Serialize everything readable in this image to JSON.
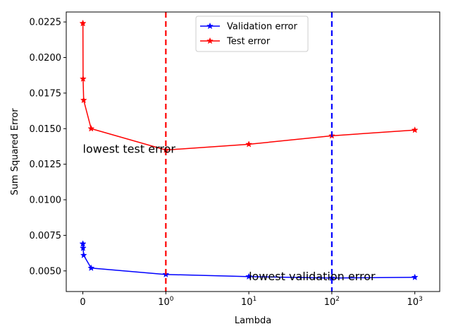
{
  "chart_data": {
    "type": "line",
    "xlabel": "Lambda",
    "ylabel": "Sum Squared Error",
    "x_scale": "symlog",
    "xlim": [
      -0.2,
      1995
    ],
    "ylim": [
      0.00355,
      0.0232
    ],
    "x_ticks": [
      {
        "value": 0,
        "base": "0",
        "exp": ""
      },
      {
        "value": 1,
        "base": "10",
        "exp": "0"
      },
      {
        "value": 10,
        "base": "10",
        "exp": "1"
      },
      {
        "value": 100,
        "base": "10",
        "exp": "2"
      },
      {
        "value": 1000,
        "base": "10",
        "exp": "3"
      }
    ],
    "y_ticks": [
      {
        "value": 0.005,
        "label": "0.0050"
      },
      {
        "value": 0.0075,
        "label": "0.0075"
      },
      {
        "value": 0.01,
        "label": "0.0100"
      },
      {
        "value": 0.0125,
        "label": "0.0125"
      },
      {
        "value": 0.015,
        "label": "0.0150"
      },
      {
        "value": 0.0175,
        "label": "0.0175"
      },
      {
        "value": 0.02,
        "label": "0.0200"
      },
      {
        "value": 0.0225,
        "label": "0.0225"
      }
    ],
    "grid": false,
    "legend": "upper-center",
    "series": [
      {
        "name": "Validation error",
        "color": "#0000ff",
        "x": [
          0,
          0.001,
          0.003,
          0.01,
          0.1,
          1,
          10,
          100,
          1000
        ],
        "y": [
          0.0069,
          0.0069,
          0.0066,
          0.0061,
          0.0052,
          0.00475,
          0.0046,
          0.0045,
          0.00455
        ]
      },
      {
        "name": "Test error",
        "color": "#ff0000",
        "x": [
          0,
          0.001,
          0.003,
          0.01,
          0.1,
          1,
          10,
          100,
          1000
        ],
        "y": [
          0.0224,
          0.0224,
          0.0185,
          0.017,
          0.015,
          0.0135,
          0.0139,
          0.0145,
          0.0149
        ]
      }
    ],
    "vlines": [
      {
        "x": 1,
        "color": "#ff0000",
        "style": "dashed"
      },
      {
        "x": 100,
        "color": "#0000ff",
        "style": "dashed"
      }
    ],
    "annotations": [
      {
        "text": "lowest test error",
        "x": 0,
        "y": 0.0136
      },
      {
        "text": "lowest validation error",
        "x": 10,
        "y": 0.00465
      }
    ]
  }
}
